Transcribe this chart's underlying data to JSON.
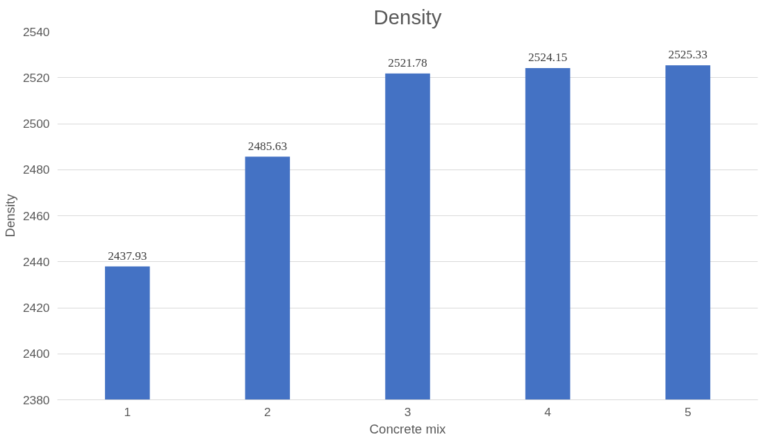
{
  "chart_data": {
    "type": "bar",
    "title": "Density",
    "xlabel": "Concrete mix",
    "ylabel": "Density",
    "categories": [
      "1",
      "2",
      "3",
      "4",
      "5"
    ],
    "values": [
      2437.93,
      2485.63,
      2521.78,
      2524.15,
      2525.33
    ],
    "color": "#4472c4",
    "ylim": [
      2380,
      2540
    ],
    "yticks": [
      2380,
      2400,
      2420,
      2440,
      2460,
      2480,
      2500,
      2520,
      2540
    ],
    "grid": "y",
    "data_labels": true
  }
}
